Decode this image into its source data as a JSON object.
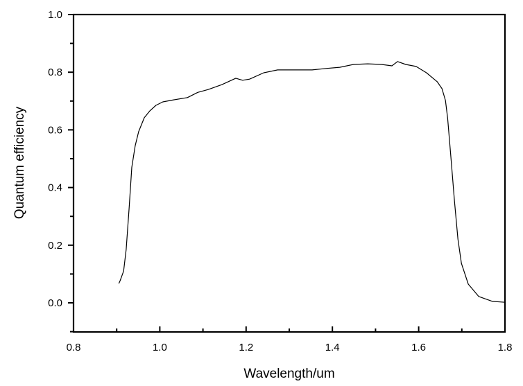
{
  "chart_data": {
    "type": "line",
    "title": "",
    "xlabel": "Wavelength/um",
    "ylabel": "Quantum efficiency",
    "xlim": [
      0.8,
      1.8
    ],
    "ylim": [
      -0.1,
      1.0
    ],
    "x_ticks": [
      "0.8",
      "1.0",
      "1.2",
      "1.4",
      "1.6",
      "1.8"
    ],
    "y_ticks": [
      "0.0",
      "0.2",
      "0.4",
      "0.6",
      "0.8",
      "1.0"
    ],
    "grid": false,
    "legend": null,
    "series": [
      {
        "name": "Quantum efficiency",
        "color": "#000000",
        "x": [
          0.905,
          0.908,
          0.916,
          0.922,
          0.929,
          0.935,
          0.943,
          0.951,
          0.964,
          0.977,
          0.991,
          1.007,
          1.032,
          1.064,
          1.088,
          1.112,
          1.144,
          1.176,
          1.192,
          1.208,
          1.241,
          1.273,
          1.305,
          1.353,
          1.385,
          1.417,
          1.449,
          1.482,
          1.514,
          1.538,
          1.551,
          1.57,
          1.594,
          1.618,
          1.643,
          1.654,
          1.662,
          1.667,
          1.675,
          1.683,
          1.691,
          1.699,
          1.715,
          1.739,
          1.771,
          1.8
        ],
        "y": [
          0.067,
          0.077,
          0.11,
          0.185,
          0.33,
          0.47,
          0.545,
          0.594,
          0.642,
          0.666,
          0.685,
          0.697,
          0.704,
          0.712,
          0.73,
          0.74,
          0.757,
          0.779,
          0.772,
          0.776,
          0.798,
          0.808,
          0.808,
          0.808,
          0.813,
          0.817,
          0.827,
          0.829,
          0.827,
          0.822,
          0.837,
          0.827,
          0.82,
          0.798,
          0.767,
          0.743,
          0.702,
          0.642,
          0.498,
          0.353,
          0.221,
          0.137,
          0.065,
          0.022,
          0.005,
          0.002
        ]
      }
    ]
  }
}
